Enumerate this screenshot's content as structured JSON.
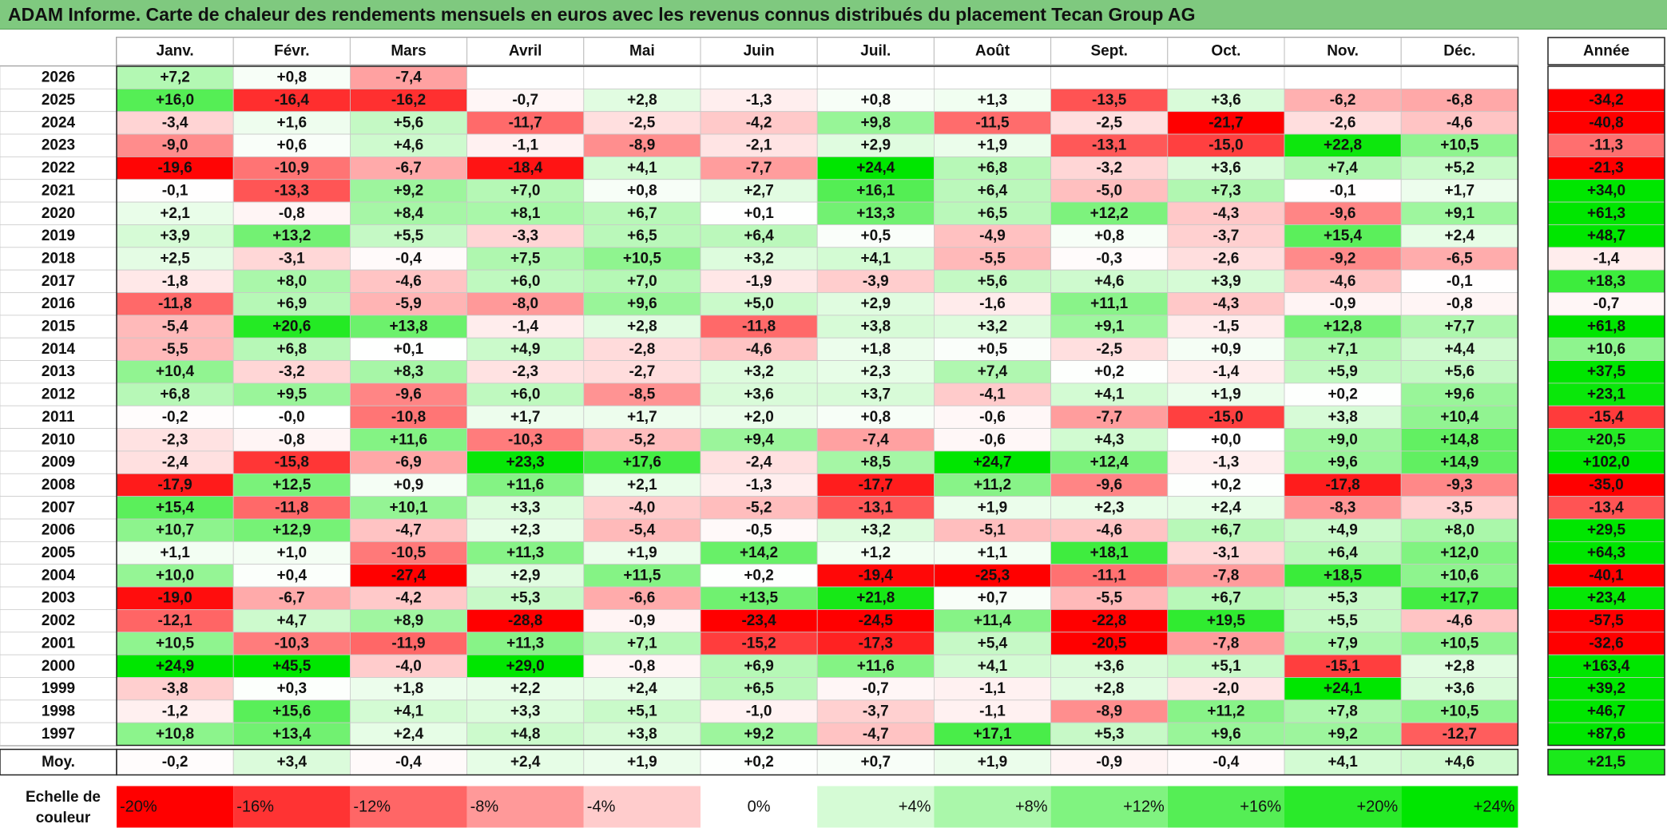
{
  "title": "ADAM Informe. Carte de chaleur des rendements mensuels en euros avec les revenus connus distribués du placement Tecan Group AG",
  "chart_data": {
    "type": "heatmap",
    "columns": [
      "Janv.",
      "Févr.",
      "Mars",
      "Avril",
      "Mai",
      "Juin",
      "Juil.",
      "Août",
      "Sept.",
      "Oct.",
      "Nov.",
      "Déc."
    ],
    "year_header": "Année",
    "rows": [
      {
        "year": "2026",
        "months": [
          "+7,2",
          "+0,8",
          "-7,4",
          "",
          "",
          "",
          "",
          "",
          "",
          "",
          "",
          ""
        ],
        "annual": ""
      },
      {
        "year": "2025",
        "months": [
          "+16,0",
          "-16,4",
          "-16,2",
          "-0,7",
          "+2,8",
          "-1,3",
          "+0,8",
          "+1,3",
          "-13,5",
          "+3,6",
          "-6,2",
          "-6,8"
        ],
        "annual": "-34,2"
      },
      {
        "year": "2024",
        "months": [
          "-3,4",
          "+1,6",
          "+5,6",
          "-11,7",
          "-2,5",
          "-4,2",
          "+9,8",
          "-11,5",
          "-2,5",
          "-21,7",
          "-2,6",
          "-4,6"
        ],
        "annual": "-40,8"
      },
      {
        "year": "2023",
        "months": [
          "-9,0",
          "+0,6",
          "+4,6",
          "-1,1",
          "-8,9",
          "-2,1",
          "+2,9",
          "+1,9",
          "-13,1",
          "-15,0",
          "+22,8",
          "+10,5"
        ],
        "annual": "-11,3"
      },
      {
        "year": "2022",
        "months": [
          "-19,6",
          "-10,9",
          "-6,7",
          "-18,4",
          "+4,1",
          "-7,7",
          "+24,4",
          "+6,8",
          "-3,2",
          "+3,6",
          "+7,4",
          "+5,2"
        ],
        "annual": "-21,3"
      },
      {
        "year": "2021",
        "months": [
          "-0,1",
          "-13,3",
          "+9,2",
          "+7,0",
          "+0,8",
          "+2,7",
          "+16,1",
          "+6,4",
          "-5,0",
          "+7,3",
          "-0,1",
          "+1,7"
        ],
        "annual": "+34,0"
      },
      {
        "year": "2020",
        "months": [
          "+2,1",
          "-0,8",
          "+8,4",
          "+8,1",
          "+6,7",
          "+0,1",
          "+13,3",
          "+6,5",
          "+12,2",
          "-4,3",
          "-9,6",
          "+9,1"
        ],
        "annual": "+61,3"
      },
      {
        "year": "2019",
        "months": [
          "+3,9",
          "+13,2",
          "+5,5",
          "-3,3",
          "+6,5",
          "+6,4",
          "+0,5",
          "-4,9",
          "+0,8",
          "-3,7",
          "+15,4",
          "+2,4"
        ],
        "annual": "+48,7"
      },
      {
        "year": "2018",
        "months": [
          "+2,5",
          "-3,1",
          "-0,4",
          "+7,5",
          "+10,5",
          "+3,2",
          "+4,1",
          "-5,5",
          "-0,3",
          "-2,6",
          "-9,2",
          "-6,5"
        ],
        "annual": "-1,4"
      },
      {
        "year": "2017",
        "months": [
          "-1,8",
          "+8,0",
          "-4,6",
          "+6,0",
          "+7,0",
          "-1,9",
          "-3,9",
          "+5,6",
          "+4,6",
          "+3,9",
          "-4,6",
          "-0,1"
        ],
        "annual": "+18,3"
      },
      {
        "year": "2016",
        "months": [
          "-11,8",
          "+6,9",
          "-5,9",
          "-8,0",
          "+9,6",
          "+5,0",
          "+2,9",
          "-1,6",
          "+11,1",
          "-4,3",
          "-0,9",
          "-0,8"
        ],
        "annual": "-0,7"
      },
      {
        "year": "2015",
        "months": [
          "-5,4",
          "+20,6",
          "+13,8",
          "-1,4",
          "+2,8",
          "-11,8",
          "+3,8",
          "+3,2",
          "+9,1",
          "-1,5",
          "+12,8",
          "+7,7"
        ],
        "annual": "+61,8"
      },
      {
        "year": "2014",
        "months": [
          "-5,5",
          "+6,8",
          "+0,1",
          "+4,9",
          "-2,8",
          "-4,6",
          "+1,8",
          "+0,5",
          "-2,5",
          "+0,9",
          "+7,1",
          "+4,4"
        ],
        "annual": "+10,6"
      },
      {
        "year": "2013",
        "months": [
          "+10,4",
          "-3,2",
          "+8,3",
          "-2,3",
          "-2,7",
          "+3,2",
          "+2,3",
          "+7,4",
          "+0,2",
          "-1,4",
          "+5,9",
          "+5,6"
        ],
        "annual": "+37,5"
      },
      {
        "year": "2012",
        "months": [
          "+6,8",
          "+9,5",
          "-9,6",
          "+6,0",
          "-8,5",
          "+3,6",
          "+3,7",
          "-4,1",
          "+4,1",
          "+1,9",
          "+0,2",
          "+9,6"
        ],
        "annual": "+23,1"
      },
      {
        "year": "2011",
        "months": [
          "-0,2",
          "-0,0",
          "-10,8",
          "+1,7",
          "+1,7",
          "+2,0",
          "+0,8",
          "-0,6",
          "-7,7",
          "-15,0",
          "+3,8",
          "+10,4"
        ],
        "annual": "-15,4"
      },
      {
        "year": "2010",
        "months": [
          "-2,3",
          "-0,8",
          "+11,6",
          "-10,3",
          "-5,2",
          "+9,4",
          "-7,4",
          "-0,6",
          "+4,3",
          "+0,0",
          "+9,0",
          "+14,8"
        ],
        "annual": "+20,5"
      },
      {
        "year": "2009",
        "months": [
          "-2,4",
          "-15,8",
          "-6,9",
          "+23,3",
          "+17,6",
          "-2,4",
          "+8,5",
          "+24,7",
          "+12,4",
          "-1,3",
          "+9,6",
          "+14,9"
        ],
        "annual": "+102,0"
      },
      {
        "year": "2008",
        "months": [
          "-17,9",
          "+12,5",
          "+0,9",
          "+11,6",
          "+2,1",
          "-1,3",
          "-17,7",
          "+11,2",
          "-9,6",
          "+0,2",
          "-17,8",
          "-9,3"
        ],
        "annual": "-35,0"
      },
      {
        "year": "2007",
        "months": [
          "+15,4",
          "-11,8",
          "+10,1",
          "+3,3",
          "-4,0",
          "-5,2",
          "-13,1",
          "+1,9",
          "+2,3",
          "+2,4",
          "-8,3",
          "-3,5"
        ],
        "annual": "-13,4"
      },
      {
        "year": "2006",
        "months": [
          "+10,7",
          "+12,9",
          "-4,7",
          "+2,3",
          "-5,4",
          "-0,5",
          "+3,2",
          "-5,1",
          "-4,6",
          "+6,7",
          "+4,9",
          "+8,0"
        ],
        "annual": "+29,5"
      },
      {
        "year": "2005",
        "months": [
          "+1,1",
          "+1,0",
          "-10,5",
          "+11,3",
          "+1,9",
          "+14,2",
          "+1,2",
          "+1,1",
          "+18,1",
          "-3,1",
          "+6,4",
          "+12,0"
        ],
        "annual": "+64,3"
      },
      {
        "year": "2004",
        "months": [
          "+10,0",
          "+0,4",
          "-27,4",
          "+2,9",
          "+11,5",
          "+0,2",
          "-19,4",
          "-25,3",
          "-11,1",
          "-7,8",
          "+18,5",
          "+10,6"
        ],
        "annual": "-40,1"
      },
      {
        "year": "2003",
        "months": [
          "-19,0",
          "-6,7",
          "-4,2",
          "+5,3",
          "-6,6",
          "+13,5",
          "+21,8",
          "+0,7",
          "-5,5",
          "+6,7",
          "+5,3",
          "+17,7"
        ],
        "annual": "+23,4"
      },
      {
        "year": "2002",
        "months": [
          "-12,1",
          "+4,7",
          "+8,9",
          "-28,8",
          "-0,9",
          "-23,4",
          "-24,5",
          "+11,4",
          "-22,8",
          "+19,5",
          "+5,5",
          "-4,6"
        ],
        "annual": "-57,5"
      },
      {
        "year": "2001",
        "months": [
          "+10,5",
          "-10,3",
          "-11,9",
          "+11,3",
          "+7,1",
          "-15,2",
          "-17,3",
          "+5,4",
          "-20,5",
          "-7,8",
          "+7,9",
          "+10,5"
        ],
        "annual": "-32,6"
      },
      {
        "year": "2000",
        "months": [
          "+24,9",
          "+45,5",
          "-4,0",
          "+29,0",
          "-0,8",
          "+6,9",
          "+11,6",
          "+4,1",
          "+3,6",
          "+5,1",
          "-15,1",
          "+2,8"
        ],
        "annual": "+163,4"
      },
      {
        "year": "1999",
        "months": [
          "-3,8",
          "+0,3",
          "+1,8",
          "+2,2",
          "+2,4",
          "+6,5",
          "-0,7",
          "-1,1",
          "+2,8",
          "-2,0",
          "+24,1",
          "+3,6"
        ],
        "annual": "+39,2"
      },
      {
        "year": "1998",
        "months": [
          "-1,2",
          "+15,6",
          "+4,1",
          "+3,3",
          "+5,1",
          "-1,0",
          "-3,7",
          "-1,1",
          "-8,9",
          "+11,2",
          "+7,8",
          "+10,5"
        ],
        "annual": "+46,7"
      },
      {
        "year": "1997",
        "months": [
          "+10,8",
          "+13,4",
          "+2,4",
          "+4,8",
          "+3,8",
          "+9,2",
          "-4,7",
          "+17,1",
          "+5,3",
          "+9,6",
          "+9,2",
          "-12,7"
        ],
        "annual": "+87,6"
      }
    ],
    "average": {
      "label": "Moy.",
      "months": [
        "-0,2",
        "+3,4",
        "-0,4",
        "+2,4",
        "+1,9",
        "+0,2",
        "+0,7",
        "+1,9",
        "-0,9",
        "-0,4",
        "+4,1",
        "+4,6"
      ],
      "annual": "+21,5"
    },
    "scale": {
      "label_line1": "Echelle de",
      "label_line2": "couleur",
      "steps": [
        "-20%",
        "-16%",
        "-12%",
        "-8%",
        "-4%",
        "0%",
        "+4%",
        "+8%",
        "+12%",
        "+16%",
        "+20%",
        "+24%"
      ],
      "values": [
        -20,
        -16,
        -12,
        -8,
        -4,
        0,
        4,
        8,
        12,
        16,
        20,
        24
      ]
    },
    "colors": {
      "negative_max": "#ff0000",
      "neutral": "#ffffff",
      "positive_max": "#00e600",
      "title_bar": "#7fc97f"
    }
  }
}
